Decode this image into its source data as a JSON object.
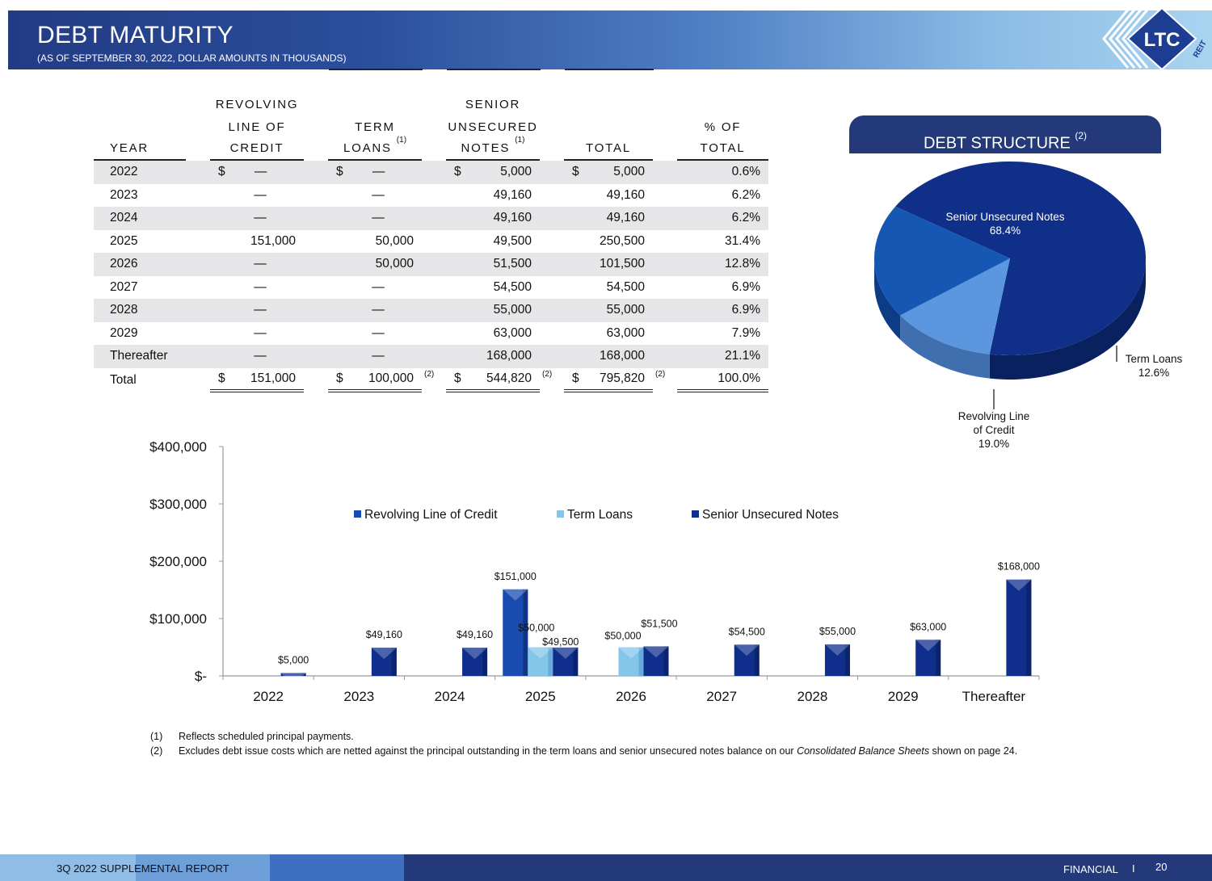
{
  "header": {
    "title": "DEBT MATURITY",
    "subtitle": "(AS OF SEPTEMBER 30, 2022, DOLLAR AMOUNTS IN THOUSANDS)",
    "logo_text": "LTC",
    "logo_sub": "REIT"
  },
  "table": {
    "headers": {
      "year": "YEAR",
      "revolving": [
        "REVOLVING",
        "LINE OF",
        "CREDIT"
      ],
      "term": [
        "TERM",
        "LOANS"
      ],
      "term_note": "(1)",
      "senior": [
        "SENIOR",
        "UNSECURED",
        "NOTES"
      ],
      "senior_note": "(1)",
      "total": "TOTAL",
      "pct": [
        "% OF",
        "TOTAL"
      ]
    },
    "rows": [
      {
        "year": "2022",
        "revolving": "—",
        "term": "—",
        "senior": "5,000",
        "total": "5,000",
        "pct": "0.6%"
      },
      {
        "year": "2023",
        "revolving": "—",
        "term": "—",
        "senior": "49,160",
        "total": "49,160",
        "pct": "6.2%"
      },
      {
        "year": "2024",
        "revolving": "—",
        "term": "—",
        "senior": "49,160",
        "total": "49,160",
        "pct": "6.2%"
      },
      {
        "year": "2025",
        "revolving": "151,000",
        "term": "50,000",
        "senior": "49,500",
        "total": "250,500",
        "pct": "31.4%"
      },
      {
        "year": "2026",
        "revolving": "—",
        "term": "50,000",
        "senior": "51,500",
        "total": "101,500",
        "pct": "12.8%"
      },
      {
        "year": "2027",
        "revolving": "—",
        "term": "—",
        "senior": "54,500",
        "total": "54,500",
        "pct": "6.9%"
      },
      {
        "year": "2028",
        "revolving": "—",
        "term": "—",
        "senior": "55,000",
        "total": "55,000",
        "pct": "6.9%"
      },
      {
        "year": "2029",
        "revolving": "—",
        "term": "—",
        "senior": "63,000",
        "total": "63,000",
        "pct": "7.9%"
      },
      {
        "year": "Thereafter",
        "revolving": "—",
        "term": "—",
        "senior": "168,000",
        "total": "168,000",
        "pct": "21.1%"
      }
    ],
    "dollar": "$",
    "total_row": {
      "year": "Total",
      "revolving": "151,000",
      "term": "100,000",
      "senior": "544,820",
      "total": "795,820",
      "pct": "100.0%",
      "note": "(2)"
    }
  },
  "debt_structure": {
    "title": "DEBT STRUCTURE",
    "title_note": "(2)",
    "chart_data": {
      "type": "pie",
      "slices": [
        {
          "name": "Senior Unsecured Notes",
          "value": 68.4,
          "label": "68.4%",
          "color": "#0f2f88"
        },
        {
          "name": "Term Loans",
          "value": 12.6,
          "label": "12.6%",
          "color": "#5b96de"
        },
        {
          "name": "Revolving Line of Credit",
          "value": 19.0,
          "label": "19.0%",
          "color": "#1757b4"
        }
      ],
      "label_lines": {
        "senior": "Senior Unsecured Notes",
        "term": "Term Loans",
        "revolving": [
          "Revolving Line",
          "of Credit"
        ]
      }
    }
  },
  "chart_data": {
    "type": "bar",
    "categories": [
      "2022",
      "2023",
      "2024",
      "2025",
      "2026",
      "2027",
      "2028",
      "2029",
      "Thereafter"
    ],
    "series": [
      {
        "name": "Revolving Line of Credit",
        "values": [
          0,
          0,
          0,
          151000,
          0,
          0,
          0,
          0,
          0
        ],
        "color": "#1a4bb0"
      },
      {
        "name": "Term Loans",
        "values": [
          0,
          0,
          0,
          50000,
          50000,
          0,
          0,
          0,
          0
        ],
        "color": "#86c5ea"
      },
      {
        "name": "Senior Unsecured Notes",
        "values": [
          5000,
          49160,
          49160,
          49500,
          51500,
          54500,
          55000,
          63000,
          168000
        ],
        "color": "#102f8c"
      }
    ],
    "data_labels": {
      "revolving": [
        "",
        "",
        "",
        "$151,000",
        "",
        "",
        "",
        "",
        ""
      ],
      "term": [
        "",
        "",
        "",
        "$50,000",
        "$50,000",
        "",
        "",
        "",
        ""
      ],
      "senior": [
        "$5,000",
        "$49,160",
        "$49,160",
        "$49,500",
        "$51,500",
        "$54,500",
        "$55,000",
        "$63,000",
        "$168,000"
      ]
    },
    "y_ticks": [
      0,
      100000,
      200000,
      300000,
      400000
    ],
    "y_tick_labels": [
      "$-",
      "$100,000",
      "$200,000",
      "$300,000",
      "$400,000"
    ],
    "ylim": [
      0,
      400000
    ],
    "legend": "top-center",
    "grid": false
  },
  "footnotes": [
    {
      "num": "(1)",
      "text": "Reflects scheduled principal payments."
    },
    {
      "num": "(2)",
      "text_before": "Excludes debt issue costs which are netted against the principal outstanding in the term loans and senior unsecured notes balance on our ",
      "text_italic": "Consolidated Balance Sheets",
      "text_after": " shown on page 24."
    }
  ],
  "footer": {
    "left": "3Q 2022 SUPPLEMENTAL REPORT",
    "right": "FINANCIAL",
    "sep": "I",
    "page": "20"
  }
}
